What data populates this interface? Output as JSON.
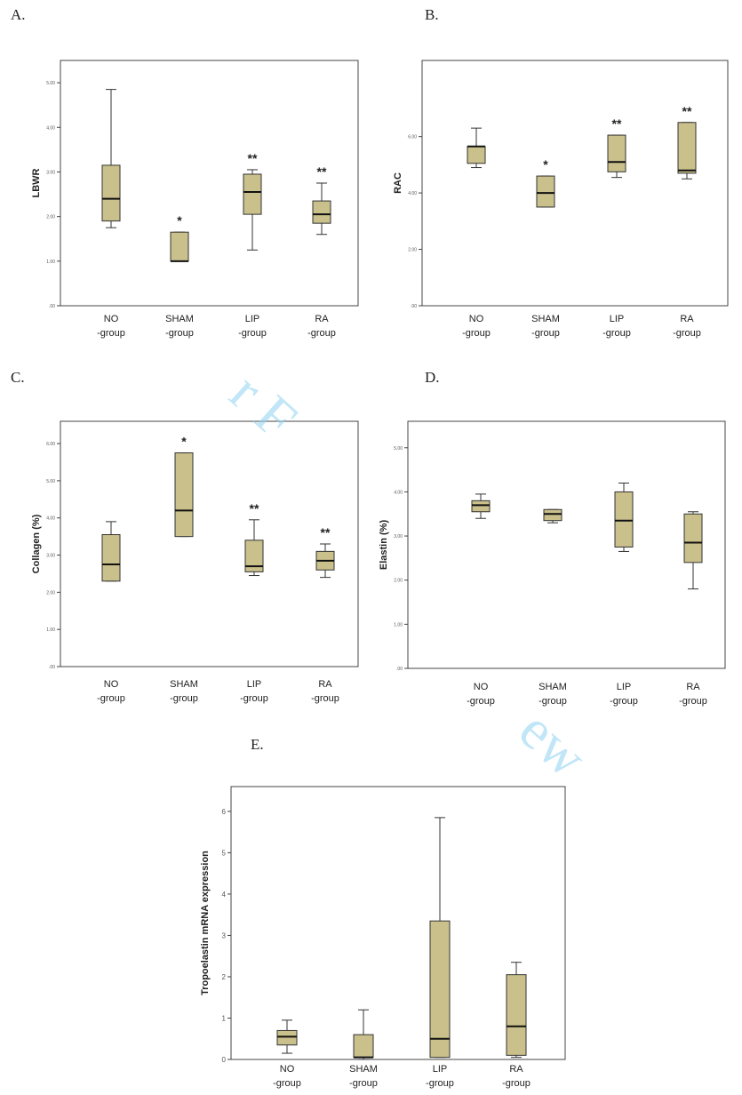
{
  "watermark": {
    "a": "r F",
    "b": "ew"
  },
  "chart_data": [
    {
      "type": "box",
      "panel_label": "A.",
      "ylabel": "LBWR",
      "categories": [
        "NO\n-group",
        "SHAM\n-group",
        "LIP\n-group",
        "RA\n-group"
      ],
      "yticks": [
        ".00",
        "1.00",
        "2.00",
        "3.00",
        "4.00",
        "5.00"
      ],
      "ylim": [
        0,
        5.5
      ],
      "boxes": [
        {
          "min": 1.75,
          "q1": 1.9,
          "median": 2.4,
          "q3": 3.15,
          "max": 4.85,
          "sig": ""
        },
        {
          "min": 1.0,
          "q1": 1.0,
          "median": 1.0,
          "q3": 1.65,
          "max": 1.65,
          "sig": "*"
        },
        {
          "min": 1.25,
          "q1": 2.05,
          "median": 2.55,
          "q3": 2.95,
          "max": 3.05,
          "sig": "**"
        },
        {
          "min": 1.6,
          "q1": 1.85,
          "median": 2.05,
          "q3": 2.35,
          "max": 2.75,
          "sig": "**"
        }
      ]
    },
    {
      "type": "box",
      "panel_label": "B.",
      "ylabel": "RAC",
      "categories": [
        "NO\n-group",
        "SHAM\n-group",
        "LIP\n-group",
        "RA\n-group"
      ],
      "yticks": [
        ".00",
        "2.00",
        "4.00",
        "6.00"
      ],
      "ylim": [
        0,
        8.7
      ],
      "boxes": [
        {
          "min": 4.9,
          "q1": 5.05,
          "median": 5.65,
          "q3": 5.65,
          "max": 6.3,
          "sig": ""
        },
        {
          "min": 3.5,
          "q1": 3.5,
          "median": 4.0,
          "q3": 4.6,
          "max": 4.6,
          "sig": "*"
        },
        {
          "min": 4.55,
          "q1": 4.75,
          "median": 5.1,
          "q3": 6.05,
          "max": 6.05,
          "sig": "**"
        },
        {
          "min": 4.5,
          "q1": 4.7,
          "median": 4.8,
          "q3": 6.5,
          "max": 6.5,
          "sig": "**"
        }
      ]
    },
    {
      "type": "box",
      "panel_label": "C.",
      "ylabel": "Collagen (%)",
      "categories": [
        "NO\n-group",
        "SHAM\n-group",
        "LIP\n-group",
        "RA\n-group"
      ],
      "yticks": [
        ".00",
        "1.00",
        "2.00",
        "3.00",
        "4.00",
        "5.00",
        "6.00"
      ],
      "ylim": [
        0,
        6.6
      ],
      "boxes": [
        {
          "min": 2.3,
          "q1": 2.3,
          "median": 2.75,
          "q3": 3.55,
          "max": 3.9,
          "sig": ""
        },
        {
          "min": 3.5,
          "q1": 3.5,
          "median": 4.2,
          "q3": 5.75,
          "max": 5.75,
          "sig": "*"
        },
        {
          "min": 2.45,
          "q1": 2.55,
          "median": 2.7,
          "q3": 3.4,
          "max": 3.95,
          "sig": "**"
        },
        {
          "min": 2.4,
          "q1": 2.6,
          "median": 2.85,
          "q3": 3.1,
          "max": 3.3,
          "sig": "**"
        }
      ]
    },
    {
      "type": "box",
      "panel_label": "D.",
      "ylabel": "Elastin (%)",
      "categories": [
        "NO\n-group",
        "SHAM\n-group",
        "LIP\n-group",
        "RA\n-group"
      ],
      "yticks": [
        ".00",
        "1.00",
        "2.00",
        "3.00",
        "4.00",
        "5.00"
      ],
      "ylim": [
        0,
        5.6
      ],
      "boxes": [
        {
          "min": 3.4,
          "q1": 3.55,
          "median": 3.7,
          "q3": 3.8,
          "max": 3.95,
          "sig": ""
        },
        {
          "min": 3.3,
          "q1": 3.35,
          "median": 3.5,
          "q3": 3.6,
          "max": 3.6,
          "sig": ""
        },
        {
          "min": 2.65,
          "q1": 2.75,
          "median": 3.35,
          "q3": 4.0,
          "max": 4.2,
          "sig": ""
        },
        {
          "min": 1.8,
          "q1": 2.4,
          "median": 2.85,
          "q3": 3.5,
          "max": 3.55,
          "sig": ""
        }
      ]
    },
    {
      "type": "box",
      "panel_label": "E.",
      "ylabel": "Tropoelastin mRNA expression",
      "categories": [
        "NO\n-group",
        "SHAM\n-group",
        "LIP\n-group",
        "RA\n-group"
      ],
      "yticks": [
        "0",
        "1",
        "2",
        "3",
        "4",
        "5",
        "6"
      ],
      "ylim": [
        0,
        6.6
      ],
      "boxes": [
        {
          "min": 0.15,
          "q1": 0.35,
          "median": 0.55,
          "q3": 0.7,
          "max": 0.95,
          "sig": ""
        },
        {
          "min": 0.0,
          "q1": 0.05,
          "median": 0.05,
          "q3": 0.6,
          "max": 1.2,
          "sig": ""
        },
        {
          "min": 0.05,
          "q1": 0.05,
          "median": 0.5,
          "q3": 3.35,
          "max": 5.85,
          "sig": ""
        },
        {
          "min": 0.05,
          "q1": 0.1,
          "median": 0.8,
          "q3": 2.05,
          "max": 2.35,
          "sig": ""
        }
      ]
    }
  ],
  "colors": {
    "box_fill": "#c9c08b",
    "box_stroke": "#333333",
    "frame": "#444444",
    "panel_bg": "#ffffff"
  }
}
